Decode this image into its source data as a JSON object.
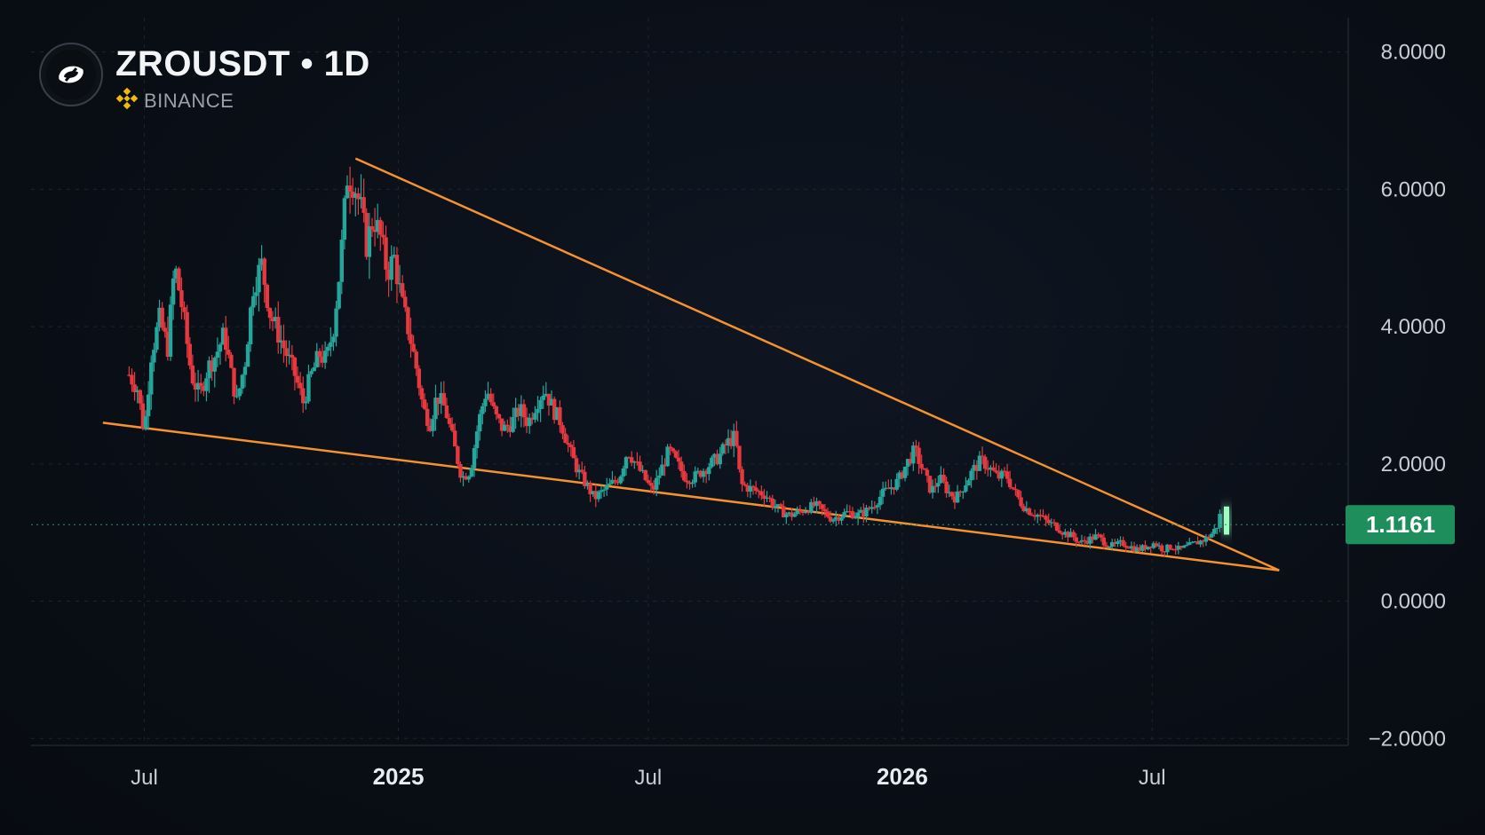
{
  "header": {
    "symbol": "ZROUSDT",
    "separator": "•",
    "interval": "1D",
    "exchange": "BINANCE",
    "logo_icon": "layerzero-logo-icon",
    "exchange_icon": "binance-diamond-icon"
  },
  "colors": {
    "background": "#0a0f17",
    "up_candle": "#26a69a",
    "down_candle": "#e5393f",
    "trendline": "#f5922e",
    "price_badge": "#1e8f5c",
    "grid": "#1c2430",
    "axis_text": "#c9ced6",
    "binance_yellow": "#f0b90b"
  },
  "chart_data": {
    "type": "candlestick",
    "title": "ZROUSDT • 1D",
    "y_axis": {
      "ticks": [
        8,
        6,
        4,
        2,
        0,
        -2
      ],
      "tick_labels": [
        "8.0000",
        "6.0000",
        "4.0000",
        "2.0000",
        "0.0000",
        "−2.0000"
      ],
      "range": [
        -2.1,
        8.5
      ],
      "side": "right"
    },
    "x_axis": {
      "ticks": [
        {
          "date": "2024-07-01",
          "label": "Jul",
          "bold": false
        },
        {
          "date": "2025-01-01",
          "label": "2025",
          "bold": true
        },
        {
          "date": "2025-07-01",
          "label": "Jul",
          "bold": false
        },
        {
          "date": "2026-01-01",
          "label": "2026",
          "bold": true
        },
        {
          "date": "2026-07-01",
          "label": "Jul",
          "bold": false
        }
      ],
      "range": [
        "2024-04-10",
        "2026-11-20"
      ]
    },
    "current_price": {
      "value": 1.1161,
      "label": "1.1161"
    },
    "grid": true,
    "trendlines": [
      {
        "name": "upper",
        "start": {
          "date": "2024-12-01",
          "value": 6.45
        },
        "end": {
          "date": "2026-10-01",
          "value": 0.45
        }
      },
      {
        "name": "lower",
        "start": {
          "date": "2024-06-01",
          "value": 2.6
        },
        "end": {
          "date": "2026-10-01",
          "value": 0.45
        }
      }
    ],
    "price_path": [
      [
        "2024-06-20",
        3.3
      ],
      [
        "2024-06-26",
        3.1
      ],
      [
        "2024-07-01",
        2.45
      ],
      [
        "2024-07-06",
        3.6
      ],
      [
        "2024-07-12",
        4.1
      ],
      [
        "2024-07-18",
        3.7
      ],
      [
        "2024-07-23",
        4.9
      ],
      [
        "2024-07-29",
        4.2
      ],
      [
        "2024-08-04",
        3.3
      ],
      [
        "2024-08-10",
        3.0
      ],
      [
        "2024-08-16",
        3.4
      ],
      [
        "2024-08-22",
        3.6
      ],
      [
        "2024-08-28",
        3.9
      ],
      [
        "2024-09-02",
        3.3
      ],
      [
        "2024-09-06",
        2.9
      ],
      [
        "2024-09-12",
        3.5
      ],
      [
        "2024-09-18",
        4.6
      ],
      [
        "2024-09-24",
        4.9
      ],
      [
        "2024-09-30",
        4.2
      ],
      [
        "2024-10-06",
        3.9
      ],
      [
        "2024-10-12",
        3.6
      ],
      [
        "2024-10-18",
        3.3
      ],
      [
        "2024-10-24",
        2.9
      ],
      [
        "2024-10-30",
        3.3
      ],
      [
        "2024-11-05",
        3.6
      ],
      [
        "2024-11-10",
        3.5
      ],
      [
        "2024-11-15",
        4.0
      ],
      [
        "2024-11-20",
        4.9
      ],
      [
        "2024-11-25",
        6.2
      ],
      [
        "2024-11-30",
        6.1
      ],
      [
        "2024-12-05",
        5.7
      ],
      [
        "2024-12-09",
        5.2
      ],
      [
        "2024-12-14",
        5.6
      ],
      [
        "2024-12-19",
        5.3
      ],
      [
        "2024-12-24",
        4.8
      ],
      [
        "2024-12-29",
        5.0
      ],
      [
        "2025-01-04",
        4.3
      ],
      [
        "2025-01-09",
        3.9
      ],
      [
        "2025-01-14",
        3.4
      ],
      [
        "2025-01-19",
        2.8
      ],
      [
        "2025-01-24",
        2.6
      ],
      [
        "2025-01-29",
        3.0
      ],
      [
        "2025-02-04",
        2.8
      ],
      [
        "2025-02-10",
        2.3
      ],
      [
        "2025-02-16",
        1.8
      ],
      [
        "2025-02-22",
        1.9
      ],
      [
        "2025-02-28",
        2.6
      ],
      [
        "2025-03-06",
        3.1
      ],
      [
        "2025-03-12",
        2.7
      ],
      [
        "2025-03-18",
        2.5
      ],
      [
        "2025-03-24",
        2.6
      ],
      [
        "2025-03-30",
        2.8
      ],
      [
        "2025-04-05",
        2.6
      ],
      [
        "2025-04-11",
        2.9
      ],
      [
        "2025-04-17",
        3.1
      ],
      [
        "2025-04-23",
        2.8
      ],
      [
        "2025-04-29",
        2.6
      ],
      [
        "2025-05-05",
        2.2
      ],
      [
        "2025-05-11",
        1.9
      ],
      [
        "2025-05-17",
        1.7
      ],
      [
        "2025-05-23",
        1.5
      ],
      [
        "2025-05-29",
        1.6
      ],
      [
        "2025-06-04",
        1.7
      ],
      [
        "2025-06-10",
        1.8
      ],
      [
        "2025-06-16",
        2.2
      ],
      [
        "2025-06-22",
        2.0
      ],
      [
        "2025-06-28",
        1.8
      ],
      [
        "2025-07-04",
        1.6
      ],
      [
        "2025-07-10",
        1.9
      ],
      [
        "2025-07-16",
        2.2
      ],
      [
        "2025-07-22",
        2.0
      ],
      [
        "2025-07-28",
        1.8
      ],
      [
        "2025-08-03",
        1.8
      ],
      [
        "2025-08-09",
        1.9
      ],
      [
        "2025-08-15",
        2.0
      ],
      [
        "2025-08-21",
        2.1
      ],
      [
        "2025-08-27",
        2.3
      ],
      [
        "2025-09-02",
        2.4
      ],
      [
        "2025-09-06",
        1.7
      ],
      [
        "2025-09-12",
        1.65
      ],
      [
        "2025-09-18",
        1.6
      ],
      [
        "2025-09-24",
        1.55
      ],
      [
        "2025-09-30",
        1.4
      ],
      [
        "2025-10-06",
        1.3
      ],
      [
        "2025-10-12",
        1.25
      ],
      [
        "2025-10-18",
        1.3
      ],
      [
        "2025-10-24",
        1.35
      ],
      [
        "2025-10-30",
        1.4
      ],
      [
        "2025-11-05",
        1.3
      ],
      [
        "2025-11-11",
        1.2
      ],
      [
        "2025-11-17",
        1.25
      ],
      [
        "2025-11-23",
        1.3
      ],
      [
        "2025-11-29",
        1.25
      ],
      [
        "2025-12-05",
        1.3
      ],
      [
        "2025-12-11",
        1.4
      ],
      [
        "2025-12-17",
        1.55
      ],
      [
        "2025-12-23",
        1.65
      ],
      [
        "2025-12-29",
        1.75
      ],
      [
        "2026-01-04",
        2.0
      ],
      [
        "2026-01-10",
        2.2
      ],
      [
        "2026-01-16",
        1.9
      ],
      [
        "2026-01-22",
        1.6
      ],
      [
        "2026-01-28",
        1.8
      ],
      [
        "2026-02-03",
        1.6
      ],
      [
        "2026-02-09",
        1.5
      ],
      [
        "2026-02-15",
        1.7
      ],
      [
        "2026-02-21",
        1.9
      ],
      [
        "2026-02-27",
        2.05
      ],
      [
        "2026-03-05",
        1.95
      ],
      [
        "2026-03-11",
        1.8
      ],
      [
        "2026-03-17",
        1.85
      ],
      [
        "2026-03-23",
        1.6
      ],
      [
        "2026-03-29",
        1.4
      ],
      [
        "2026-04-04",
        1.3
      ],
      [
        "2026-04-10",
        1.25
      ],
      [
        "2026-04-16",
        1.15
      ],
      [
        "2026-04-22",
        1.1
      ],
      [
        "2026-04-28",
        1.0
      ],
      [
        "2026-05-04",
        0.95
      ],
      [
        "2026-05-10",
        0.85
      ],
      [
        "2026-05-16",
        0.9
      ],
      [
        "2026-05-22",
        0.95
      ],
      [
        "2026-05-28",
        0.85
      ],
      [
        "2026-06-03",
        0.8
      ],
      [
        "2026-06-09",
        0.85
      ],
      [
        "2026-06-15",
        0.8
      ],
      [
        "2026-06-21",
        0.75
      ],
      [
        "2026-06-27",
        0.8
      ],
      [
        "2026-07-03",
        0.85
      ],
      [
        "2026-07-09",
        0.75
      ],
      [
        "2026-07-15",
        0.8
      ],
      [
        "2026-07-21",
        0.75
      ],
      [
        "2026-07-27",
        0.8
      ],
      [
        "2026-08-02",
        0.85
      ],
      [
        "2026-08-08",
        0.9
      ],
      [
        "2026-08-14",
        1.0
      ],
      [
        "2026-08-17",
        1.1
      ],
      [
        "2026-08-20",
        1.32
      ]
    ]
  }
}
